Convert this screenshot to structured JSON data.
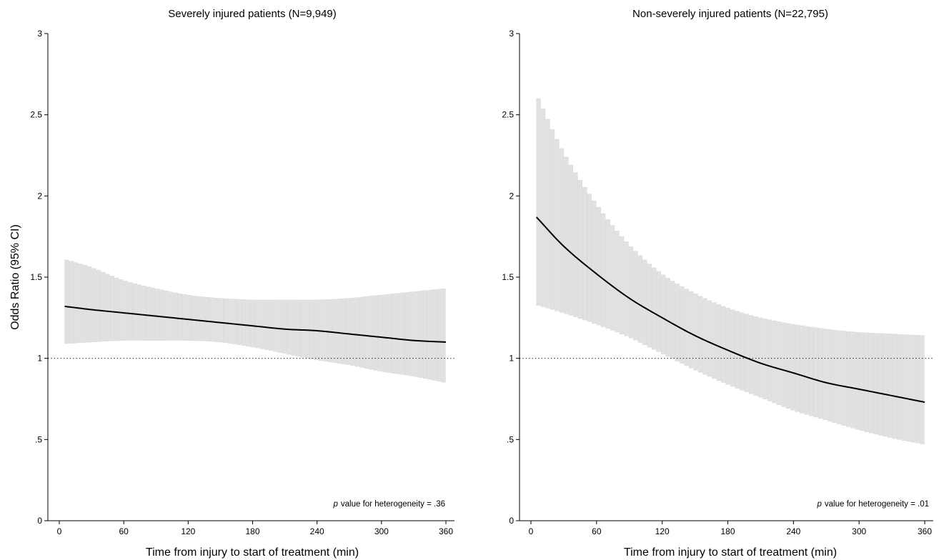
{
  "figure": {
    "ylabel": "Odds Ratio (95% CI)"
  },
  "chart_data": [
    {
      "type": "area",
      "title": "Severely injured patients (N=9,949)",
      "xlabel": "Time from injury to start of treatment (min)",
      "ylabel": "Odds Ratio (95% CI)",
      "xlim": [
        -10,
        368
      ],
      "ylim": [
        0,
        3
      ],
      "xticks": [
        0,
        60,
        120,
        180,
        240,
        300,
        360
      ],
      "xtick_labels": [
        "0",
        "60",
        "120",
        "180",
        "240",
        "300",
        "360"
      ],
      "yticks": [
        0,
        0.5,
        1,
        1.5,
        2,
        2.5,
        3
      ],
      "ytick_labels": [
        "0",
        ".5",
        "1",
        "1.5",
        "2",
        "2.5",
        "3"
      ],
      "reference_line": {
        "y": 1,
        "style": "dotted"
      },
      "note_prefix": "p",
      "note": "value for heterogeneity = .36",
      "grid": false,
      "series": [
        {
          "x": [
            5,
            30,
            60,
            90,
            120,
            150,
            180,
            210,
            240,
            270,
            300,
            330,
            360
          ],
          "y": [
            1.32,
            1.3,
            1.28,
            1.26,
            1.24,
            1.22,
            1.2,
            1.18,
            1.17,
            1.15,
            1.13,
            1.11,
            1.1
          ]
        },
        {
          "x": [
            5,
            30,
            60,
            90,
            120,
            150,
            180,
            210,
            240,
            270,
            300,
            330,
            360
          ],
          "y": [
            1.61,
            1.56,
            1.48,
            1.43,
            1.39,
            1.37,
            1.36,
            1.36,
            1.36,
            1.37,
            1.39,
            1.41,
            1.43
          ]
        },
        {
          "x": [
            5,
            30,
            60,
            90,
            120,
            150,
            180,
            210,
            240,
            270,
            300,
            330,
            360
          ],
          "y": [
            1.09,
            1.1,
            1.11,
            1.11,
            1.11,
            1.1,
            1.07,
            1.03,
            0.99,
            0.96,
            0.92,
            0.89,
            0.85
          ]
        }
      ]
    },
    {
      "type": "area",
      "title": "Non-severely injured patients (N=22,795)",
      "xlabel": "Time from injury to start of treatment (min)",
      "ylabel": "",
      "xlim": [
        -10,
        368
      ],
      "ylim": [
        0,
        3
      ],
      "xticks": [
        0,
        60,
        120,
        180,
        240,
        300,
        360
      ],
      "xtick_labels": [
        "0",
        "60",
        "120",
        "180",
        "240",
        "300",
        "360"
      ],
      "yticks": [
        0,
        0.5,
        1,
        1.5,
        2,
        2.5,
        3
      ],
      "ytick_labels": [
        "0",
        ".5",
        "1",
        "1.5",
        "2",
        "2.5",
        "3"
      ],
      "reference_line": {
        "y": 1,
        "style": "dotted"
      },
      "note_prefix": "p",
      "note": "value for heterogeneity = .01",
      "grid": false,
      "series": [
        {
          "x": [
            5,
            30,
            60,
            90,
            120,
            150,
            180,
            210,
            240,
            270,
            300,
            330,
            360
          ],
          "y": [
            1.87,
            1.69,
            1.52,
            1.37,
            1.25,
            1.14,
            1.05,
            0.97,
            0.91,
            0.85,
            0.81,
            0.77,
            0.73
          ]
        },
        {
          "x": [
            5,
            30,
            60,
            90,
            120,
            150,
            180,
            210,
            240,
            270,
            300,
            330,
            360
          ],
          "y": [
            2.63,
            2.27,
            1.95,
            1.7,
            1.52,
            1.4,
            1.31,
            1.25,
            1.21,
            1.18,
            1.16,
            1.15,
            1.14
          ]
        },
        {
          "x": [
            5,
            30,
            60,
            90,
            120,
            150,
            180,
            210,
            240,
            270,
            300,
            330,
            360
          ],
          "y": [
            1.33,
            1.28,
            1.21,
            1.13,
            1.03,
            0.93,
            0.84,
            0.76,
            0.68,
            0.62,
            0.56,
            0.51,
            0.47
          ]
        }
      ]
    }
  ]
}
